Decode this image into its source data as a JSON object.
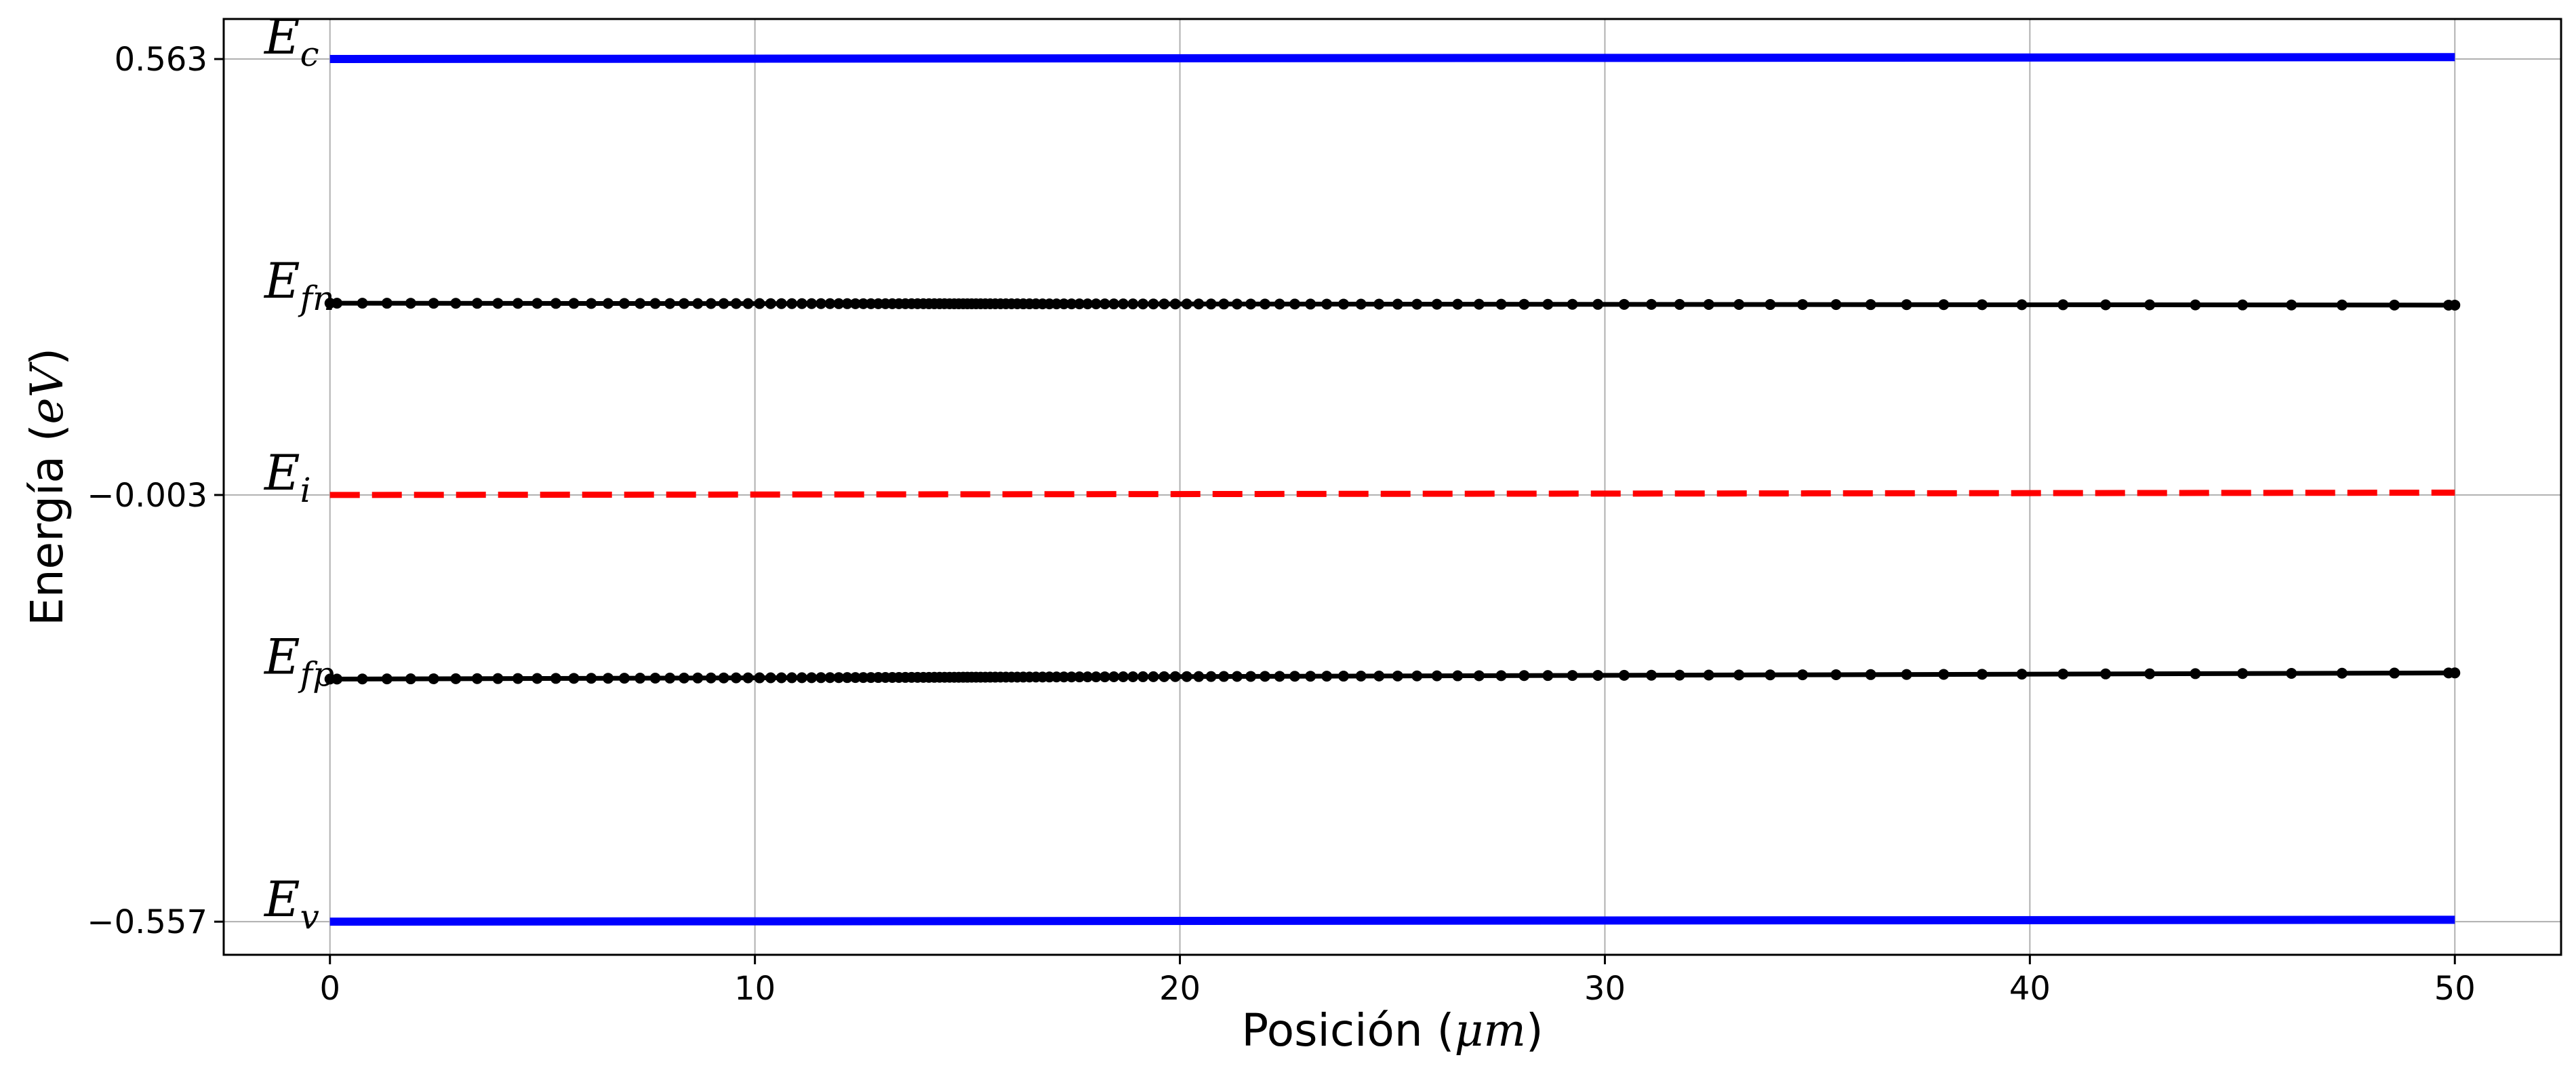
{
  "chart_data": {
    "type": "line",
    "xlabel_main": "Posición (",
    "xlabel_unit": "μm",
    "xlabel_end": ")",
    "ylabel_main": "Energía (",
    "ylabel_unit": "eV",
    "ylabel_end": ")",
    "xlim": [
      -2.5,
      52.5
    ],
    "ylim": [
      -0.6,
      0.615
    ],
    "x_ticks": [
      0,
      10,
      20,
      30,
      40,
      50
    ],
    "x_tick_labels": [
      "0",
      "10",
      "20",
      "30",
      "40",
      "50"
    ],
    "y_ticks": [
      0.563,
      -0.003,
      -0.557
    ],
    "y_tick_labels": [
      "0.563",
      "−0.003",
      "−0.557"
    ],
    "grid": true,
    "series": [
      {
        "name": "E_c",
        "label_main": "E",
        "label_sub": "c",
        "color": "#0000ff",
        "style": "solid",
        "markers": false,
        "x": [
          0,
          50
        ],
        "y": [
          0.563,
          0.5655
        ]
      },
      {
        "name": "E_fn",
        "label_main": "E",
        "label_sub": "fn",
        "color": "#000000",
        "style": "solid",
        "markers": true,
        "x_range": [
          0,
          50
        ],
        "y_start": 0.246,
        "y_end": 0.2435
      },
      {
        "name": "E_i",
        "label_main": "E",
        "label_sub": "i",
        "color": "#ff0000",
        "style": "dashed",
        "markers": false,
        "x": [
          0,
          50
        ],
        "y": [
          -0.003,
          0.0
        ]
      },
      {
        "name": "E_fp",
        "label_main": "E",
        "label_sub": "fp",
        "color": "#000000",
        "style": "solid",
        "markers": true,
        "x_range": [
          0,
          50
        ],
        "y_start": -0.242,
        "y_end": -0.234
      },
      {
        "name": "E_v",
        "label_main": "E",
        "label_sub": "v",
        "color": "#0000ff",
        "style": "solid",
        "markers": false,
        "x": [
          0,
          50
        ],
        "y": [
          -0.557,
          -0.5545
        ]
      }
    ]
  }
}
